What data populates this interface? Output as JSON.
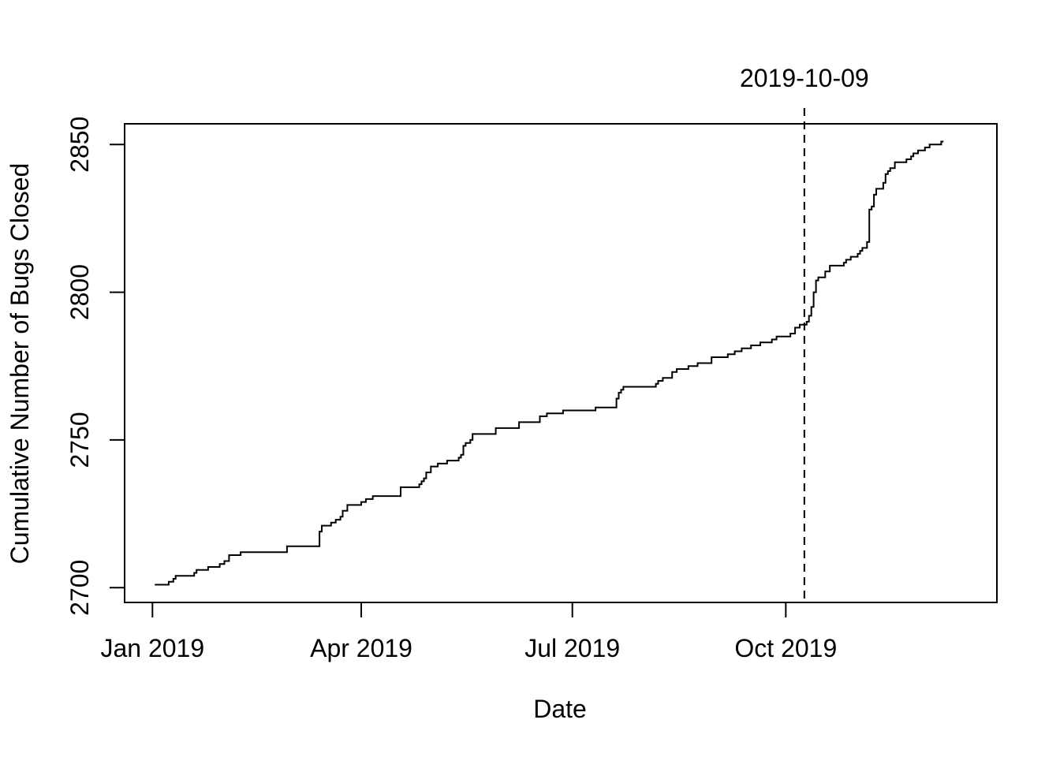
{
  "chart_data": {
    "type": "line",
    "title": "",
    "xlabel": "Date",
    "ylabel": "Cumulative Number of Bugs Closed",
    "ylim": [
      2695,
      2857
    ],
    "xlim": [
      "2018-12-20",
      "2019-12-31"
    ],
    "x_ticks": [
      {
        "date": "2019-01-01",
        "label": "Jan 2019"
      },
      {
        "date": "2019-04-01",
        "label": "Apr 2019"
      },
      {
        "date": "2019-07-01",
        "label": "Jul 2019"
      },
      {
        "date": "2019-10-01",
        "label": "Oct 2019"
      }
    ],
    "y_ticks": [
      {
        "value": 2700,
        "label": "2700"
      },
      {
        "value": 2750,
        "label": "2750"
      },
      {
        "value": 2800,
        "label": "2800"
      },
      {
        "value": 2850,
        "label": "2850"
      }
    ],
    "grid": false,
    "legend": "none",
    "vline": {
      "date": "2019-10-09",
      "label": "2019-10-09",
      "style": "dashed"
    },
    "series": [
      {
        "step": true,
        "x": [
          "2019-01-02",
          "2019-01-08",
          "2019-01-10",
          "2019-01-11",
          "2019-01-13",
          "2019-01-19",
          "2019-01-20",
          "2019-01-25",
          "2019-01-30",
          "2019-02-01",
          "2019-02-03",
          "2019-02-05",
          "2019-02-08",
          "2019-02-13",
          "2019-02-28",
          "2019-03-14",
          "2019-03-14",
          "2019-03-15",
          "2019-03-19",
          "2019-03-21",
          "2019-03-23",
          "2019-03-24",
          "2019-03-26",
          "2019-03-29",
          "2019-04-01",
          "2019-04-03",
          "2019-04-06",
          "2019-04-18",
          "2019-04-26",
          "2019-04-27",
          "2019-04-28",
          "2019-04-29",
          "2019-05-01",
          "2019-05-04",
          "2019-05-08",
          "2019-05-13",
          "2019-05-14",
          "2019-05-15",
          "2019-05-16",
          "2019-05-18",
          "2019-05-19",
          "2019-05-27",
          "2019-05-29",
          "2019-06-08",
          "2019-06-15",
          "2019-06-17",
          "2019-06-20",
          "2019-06-26",
          "2019-06-27",
          "2019-07-01",
          "2019-07-11",
          "2019-07-14",
          "2019-07-20",
          "2019-07-21",
          "2019-07-22",
          "2019-07-23",
          "2019-07-24",
          "2019-08-06",
          "2019-08-07",
          "2019-08-09",
          "2019-08-13",
          "2019-08-15",
          "2019-08-20",
          "2019-08-24",
          "2019-08-30",
          "2019-09-06",
          "2019-09-09",
          "2019-09-12",
          "2019-09-16",
          "2019-09-20",
          "2019-09-25",
          "2019-09-27",
          "2019-10-03",
          "2019-10-05",
          "2019-10-07",
          "2019-10-09",
          "2019-10-10",
          "2019-10-11",
          "2019-10-12",
          "2019-10-13",
          "2019-10-14",
          "2019-10-15",
          "2019-10-18",
          "2019-10-20",
          "2019-10-26",
          "2019-10-27",
          "2019-10-29",
          "2019-11-01",
          "2019-11-02",
          "2019-11-03",
          "2019-11-05",
          "2019-11-06",
          "2019-11-07",
          "2019-11-08",
          "2019-11-09",
          "2019-11-12",
          "2019-11-13",
          "2019-11-14",
          "2019-11-15",
          "2019-11-17",
          "2019-11-22",
          "2019-11-24",
          "2019-11-25",
          "2019-11-27",
          "2019-11-30",
          "2019-12-01",
          "2019-12-02",
          "2019-12-04",
          "2019-12-07",
          "2019-12-08"
        ],
        "values": [
          2701,
          2702,
          2703,
          2704,
          2704,
          2705,
          2706,
          2707,
          2708,
          2709,
          2711,
          2711,
          2712,
          2712,
          2714,
          2715,
          2719,
          2721,
          2722,
          2723,
          2724,
          2726,
          2728,
          2728,
          2729,
          2730,
          2731,
          2734,
          2735,
          2736,
          2737,
          2739,
          2741,
          2742,
          2743,
          2744,
          2745,
          2748,
          2749,
          2750,
          2752,
          2752,
          2754,
          2756,
          2756,
          2758,
          2759,
          2759,
          2760,
          2760,
          2761,
          2761,
          2764,
          2766,
          2767,
          2768,
          2768,
          2769,
          2770,
          2771,
          2773,
          2774,
          2775,
          2776,
          2778,
          2779,
          2780,
          2781,
          2782,
          2783,
          2784,
          2785,
          2786,
          2788,
          2789,
          2789,
          2790,
          2792,
          2795,
          2800,
          2804,
          2805,
          2807,
          2809,
          2810,
          2811,
          2812,
          2813,
          2814,
          2815,
          2817,
          2828,
          2829,
          2833,
          2835,
          2837,
          2840,
          2841,
          2842,
          2844,
          2845,
          2846,
          2847,
          2848,
          2849,
          2849,
          2850,
          2850,
          2851,
          2851
        ]
      }
    ]
  }
}
